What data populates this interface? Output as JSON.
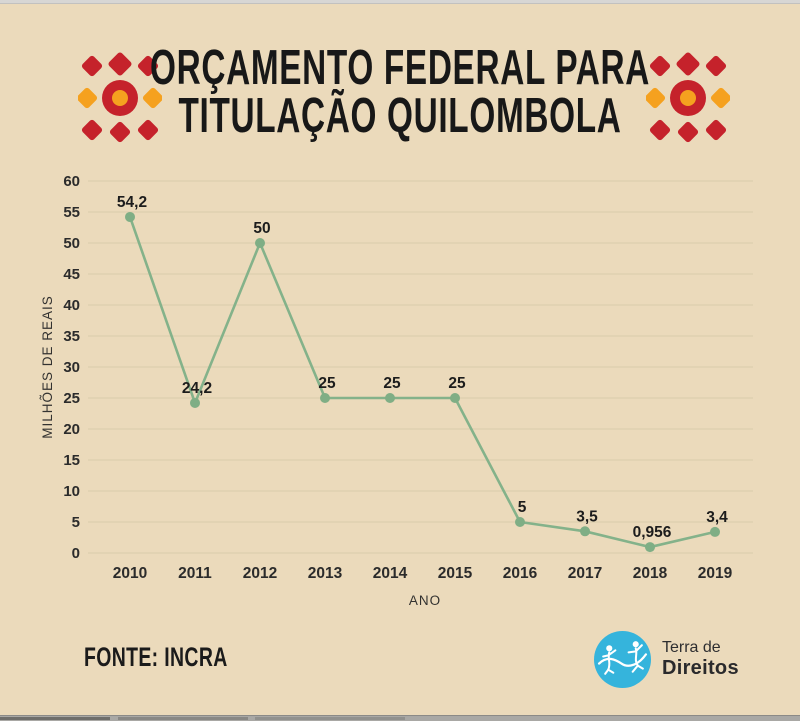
{
  "page": {
    "background": "#ebdabb"
  },
  "header": {
    "title_line1": "ORÇAMENTO FEDERAL PARA",
    "title_line2": "TITULAÇÃO QUILOMBOLA"
  },
  "ornament": {
    "red": "#c5222b",
    "orange": "#f5a11f"
  },
  "chart_data": {
    "type": "line",
    "title": "ORÇAMENTO FEDERAL PARA TITULAÇÃO QUILOMBOLA",
    "categories": [
      "2010",
      "2011",
      "2012",
      "2013",
      "2014",
      "2015",
      "2016",
      "2017",
      "2018",
      "2019"
    ],
    "values": [
      54.2,
      24.2,
      50,
      25,
      25,
      25,
      5,
      3.5,
      0.956,
      3.4
    ],
    "point_labels": [
      "54,2",
      "24,2",
      "50",
      "25",
      "25",
      "25",
      "5",
      "3,5",
      "0,956",
      "3,4"
    ],
    "xlabel": "ANO",
    "ylabel": "MILHÕES DE REAIS",
    "ylim": [
      0,
      60
    ],
    "ytick_step": 5,
    "grid": true,
    "legend": "none",
    "line_color": "#84b28a",
    "marker_color": "#7fae85",
    "grid_color": "#dccfae",
    "tick_color": "#2b2b2b",
    "label_color": "#1c1c1c"
  },
  "footer": {
    "source": "FONTE: INCRA",
    "logo": {
      "text_top": "Terra de",
      "text_bottom": "Direitos",
      "circle_color": "#35b4dc"
    }
  }
}
